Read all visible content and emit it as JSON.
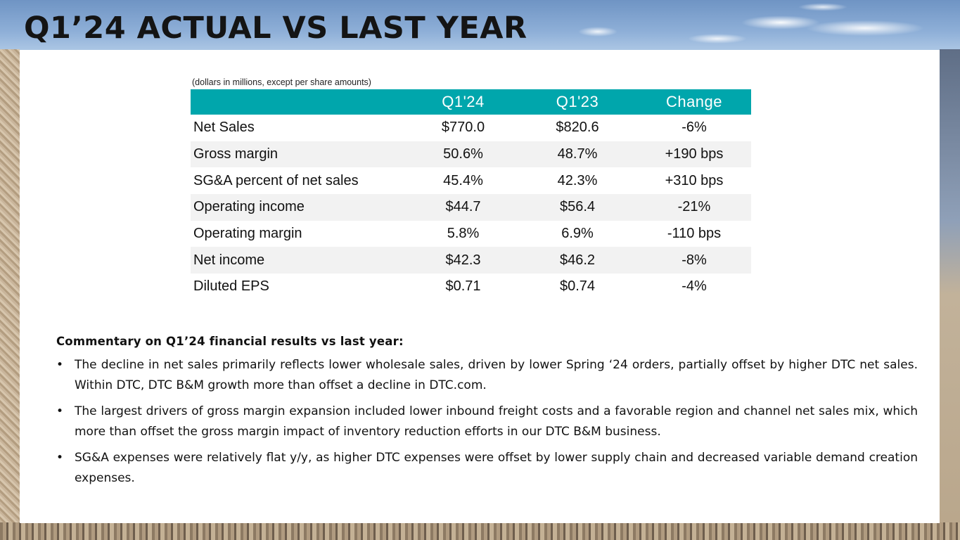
{
  "slide": {
    "title": "Q1’24 ACTUAL VS LAST YEAR"
  },
  "table": {
    "units_note": "(dollars in millions, except per share amounts)",
    "columns": [
      "",
      "Q1'24",
      "Q1'23",
      "Change"
    ],
    "rows": [
      [
        "Net Sales",
        "$770.0",
        "$820.6",
        "-6%"
      ],
      [
        "Gross margin",
        "50.6%",
        "48.7%",
        "+190 bps"
      ],
      [
        "SG&A percent of net sales",
        "45.4%",
        "42.3%",
        "+310 bps"
      ],
      [
        "Operating income",
        "$44.7",
        "$56.4",
        "-21%"
      ],
      [
        "Operating margin",
        "5.8%",
        "6.9%",
        "-110 bps"
      ],
      [
        "Net income",
        "$42.3",
        "$46.2",
        "-8%"
      ],
      [
        "Diluted EPS",
        "$0.71",
        "$0.74",
        "-4%"
      ]
    ],
    "header_color": "#00a6ac",
    "stripe_color": "#f2f2f2"
  },
  "commentary": {
    "heading": "Commentary on Q1’24 financial results vs last year:",
    "bullets": [
      "The decline in net sales primarily reflects lower wholesale sales, driven by lower Spring ‘24 orders, partially offset by higher DTC net sales. Within DTC, DTC B&M growth more than offset a decline in DTC.com.",
      "The largest drivers of gross margin expansion included lower inbound freight costs and a favorable region and channel net sales mix, which more than offset the gross margin impact of inventory reduction efforts in our DTC B&M business.",
      "SG&A expenses were relatively flat y/y, as higher DTC expenses were offset by lower supply chain and decreased variable demand creation expenses."
    ]
  }
}
